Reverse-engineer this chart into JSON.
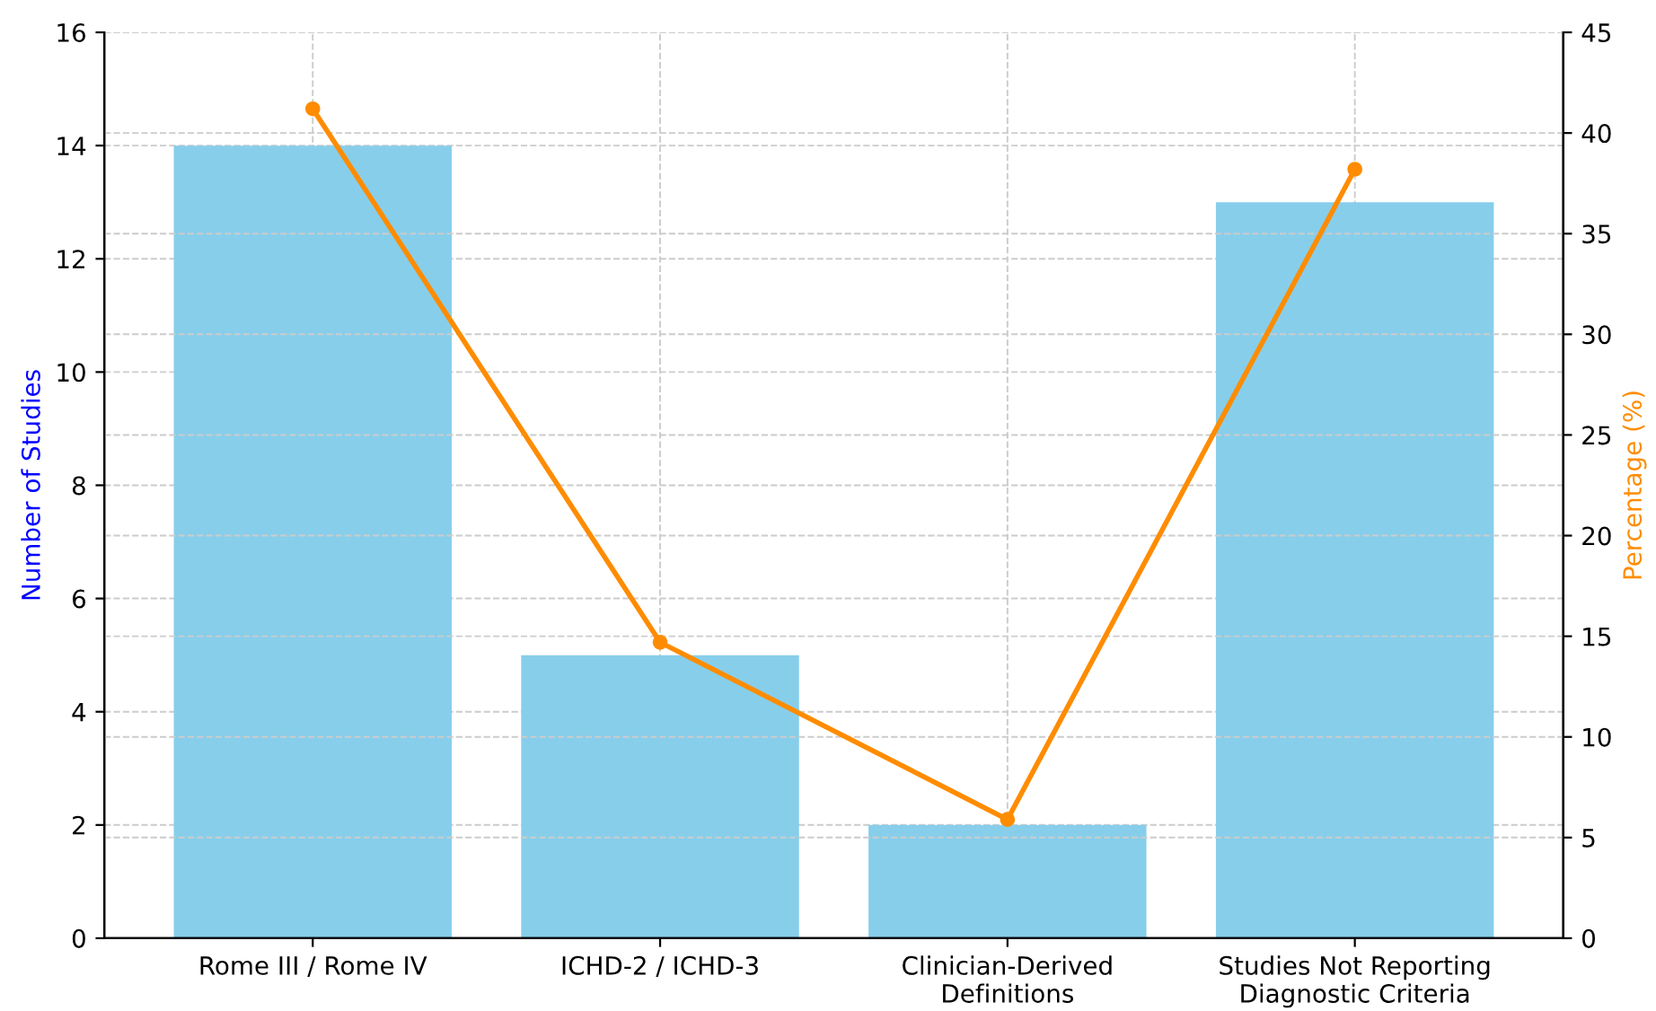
{
  "chart_data": {
    "type": "bar",
    "ylabel": "Number of Studies",
    "y2label": "Percentage (%)",
    "categories": [
      "Rome III / Rome IV",
      "ICHD-2 / ICHD-3",
      "Clinician-Derived\nDefinitions",
      "Studies Not Reporting\nDiagnostic Criteria"
    ],
    "series": [
      {
        "color": "#87ceeb",
        "values": [
          14,
          5,
          2,
          13
        ]
      },
      {
        "type": "line",
        "axis": "y2",
        "color": "#ff8c00",
        "values": [
          41.2,
          14.7,
          5.9,
          38.2
        ],
        "marker": "circle"
      }
    ],
    "ylim": [
      0,
      16
    ],
    "yticks": [
      0,
      2,
      4,
      6,
      8,
      10,
      12,
      14,
      16
    ],
    "y2lim": [
      0,
      45
    ],
    "y2ticks": [
      0,
      5,
      10,
      15,
      20,
      25,
      30,
      35,
      40,
      45
    ],
    "grid": true
  }
}
